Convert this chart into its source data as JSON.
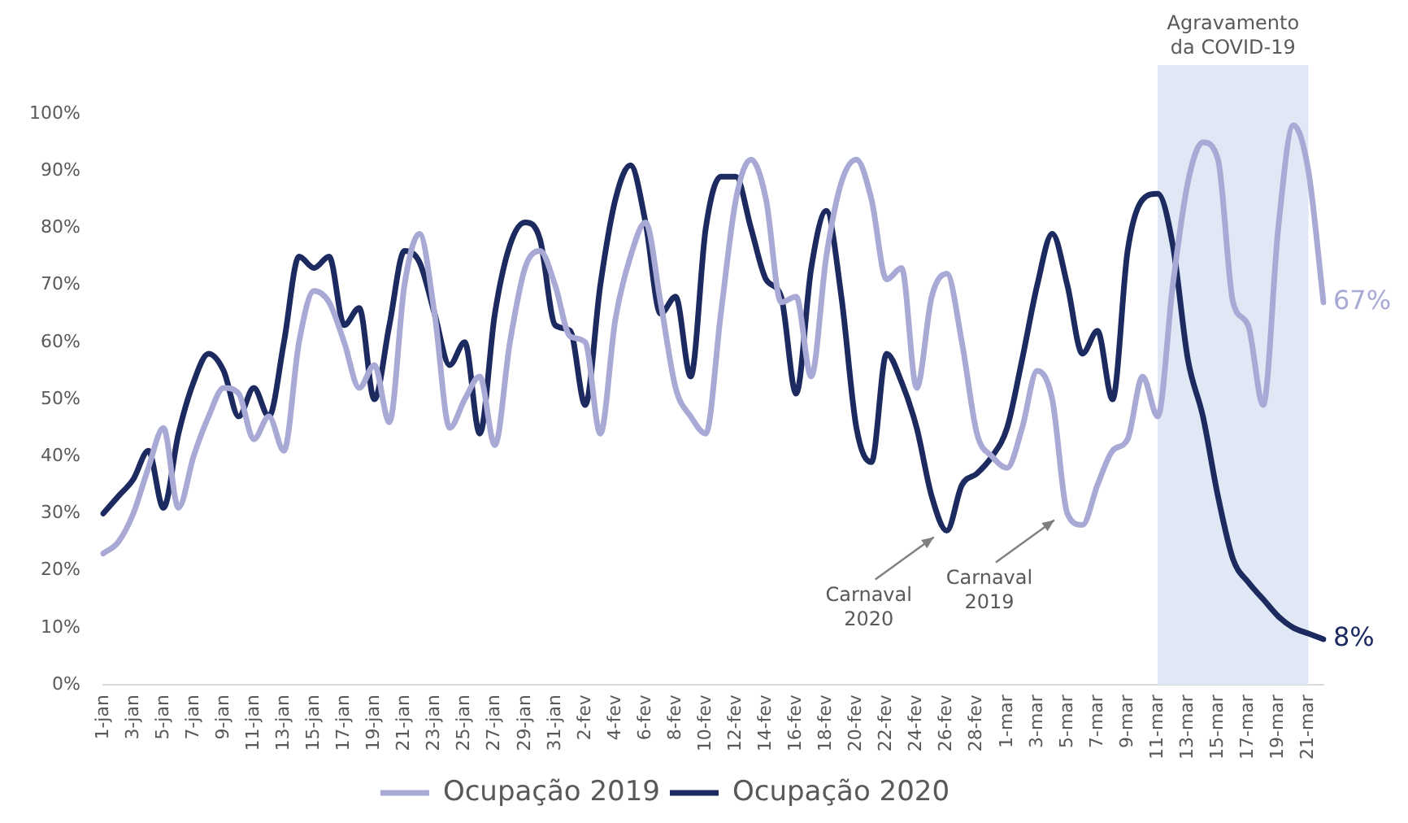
{
  "chart_data": {
    "type": "line",
    "categories": [
      "1-jan",
      null,
      "3-jan",
      null,
      "5-jan",
      null,
      "7-jan",
      null,
      "9-jan",
      null,
      "11-jan",
      null,
      "13-jan",
      null,
      "15-jan",
      null,
      "17-jan",
      null,
      "19-jan",
      null,
      "21-jan",
      null,
      "23-jan",
      null,
      "25-jan",
      null,
      "27-jan",
      null,
      "29-jan",
      null,
      "31-jan",
      null,
      "2-fev",
      null,
      "4-fev",
      null,
      "6-fev",
      null,
      "8-fev",
      null,
      "10-fev",
      null,
      "12-fev",
      null,
      "14-fev",
      null,
      "16-fev",
      null,
      "18-fev",
      null,
      "20-fev",
      null,
      "22-fev",
      null,
      "24-fev",
      null,
      "26-fev",
      null,
      "28-fev",
      null,
      "1-mar",
      null,
      "3-mar",
      null,
      "5-mar",
      null,
      "7-mar",
      null,
      "9-mar",
      null,
      "11-mar",
      null,
      "13-mar",
      null,
      "15-mar",
      null,
      "17-mar",
      null,
      "19-mar",
      null,
      "21-mar",
      null
    ],
    "series": [
      {
        "name": "Ocupação 2019",
        "color": "#a9a9d6",
        "values": [
          23,
          25,
          30,
          38,
          45,
          31,
          40,
          47,
          52,
          51,
          43,
          47,
          41,
          60,
          69,
          67,
          60,
          52,
          56,
          46,
          70,
          79,
          65,
          45,
          50,
          54,
          42,
          60,
          73,
          76,
          70,
          61,
          60,
          44,
          64,
          75,
          81,
          67,
          52,
          47,
          44,
          65,
          85,
          92,
          85,
          67,
          68,
          54,
          75,
          88,
          92,
          85,
          71,
          73,
          52,
          68,
          72,
          60,
          44,
          40,
          38,
          45,
          55,
          50,
          30,
          28,
          35,
          41,
          43,
          54,
          47,
          70,
          88,
          95,
          92,
          67,
          63,
          49,
          80,
          98,
          90,
          67
        ],
        "value_labels": [
          null,
          null,
          null,
          null,
          null,
          null,
          null,
          null,
          null,
          null,
          null,
          null,
          null,
          null,
          null,
          null,
          null,
          null,
          null,
          null,
          null,
          null,
          null,
          null,
          null,
          null,
          null,
          null,
          null,
          null,
          null,
          null,
          null,
          null,
          null,
          null,
          null,
          null,
          null,
          null,
          null,
          null,
          null,
          null,
          null,
          null,
          null,
          null,
          null,
          null,
          null,
          null,
          null,
          null,
          null,
          null,
          null,
          null,
          null,
          null,
          null,
          null,
          null,
          null,
          null,
          null,
          null,
          null,
          null,
          null,
          null,
          null,
          null,
          null,
          null,
          null,
          null,
          null,
          null,
          null,
          null,
          "67%"
        ]
      },
      {
        "name": "Ocupação 2020",
        "color": "#1c2a60",
        "values": [
          30,
          33,
          36,
          41,
          31,
          44,
          53,
          58,
          55,
          47,
          52,
          47,
          60,
          75,
          73,
          75,
          63,
          66,
          50,
          63,
          76,
          74,
          65,
          56,
          60,
          44,
          65,
          77,
          81,
          78,
          63,
          62,
          49,
          70,
          85,
          91,
          81,
          65,
          68,
          54,
          80,
          89,
          89,
          80,
          71,
          68,
          51,
          73,
          83,
          68,
          45,
          39,
          58,
          53,
          45,
          33,
          27,
          35,
          37,
          40,
          45,
          57,
          70,
          79,
          70,
          58,
          62,
          50,
          76,
          85,
          86,
          77,
          57,
          47,
          33,
          22,
          18,
          15,
          12,
          10,
          9,
          8
        ],
        "value_labels": [
          null,
          null,
          null,
          null,
          null,
          null,
          null,
          null,
          null,
          null,
          null,
          null,
          null,
          null,
          null,
          null,
          null,
          null,
          null,
          null,
          null,
          null,
          null,
          null,
          null,
          null,
          null,
          null,
          null,
          null,
          null,
          null,
          null,
          null,
          null,
          null,
          null,
          null,
          null,
          null,
          null,
          null,
          null,
          null,
          null,
          null,
          null,
          null,
          null,
          null,
          null,
          null,
          null,
          null,
          null,
          null,
          null,
          null,
          null,
          null,
          null,
          null,
          null,
          null,
          null,
          null,
          null,
          null,
          null,
          null,
          null,
          null,
          null,
          null,
          null,
          null,
          null,
          null,
          null,
          null,
          null,
          "8%"
        ]
      }
    ],
    "ylim": [
      0,
      100
    ],
    "yticks": [
      {
        "value": 0,
        "label": "0%"
      },
      {
        "value": 10,
        "label": "10%"
      },
      {
        "value": 20,
        "label": "20%"
      },
      {
        "value": 30,
        "label": "30%"
      },
      {
        "value": 40,
        "label": "40%"
      },
      {
        "value": 50,
        "label": "50%"
      },
      {
        "value": 60,
        "label": "60%"
      },
      {
        "value": 70,
        "label": "70%"
      },
      {
        "value": 80,
        "label": "80%"
      },
      {
        "value": 90,
        "label": "90%"
      },
      {
        "value": 100,
        "label": "100%"
      }
    ],
    "bands": [
      {
        "axis": "x",
        "from": "11-mar",
        "to": "21-mar",
        "label": "Agravamento da COVID-19",
        "color": "#dfe8f4"
      }
    ],
    "annotations": [
      {
        "text": "Carnaval 2020",
        "x": "26-fev",
        "y": 27
      },
      {
        "text": "Carnaval 2019",
        "x": "5-mar",
        "y": 30
      }
    ],
    "grid": false,
    "legend": "bottom",
    "marker": "none",
    "line_style": "solid"
  }
}
